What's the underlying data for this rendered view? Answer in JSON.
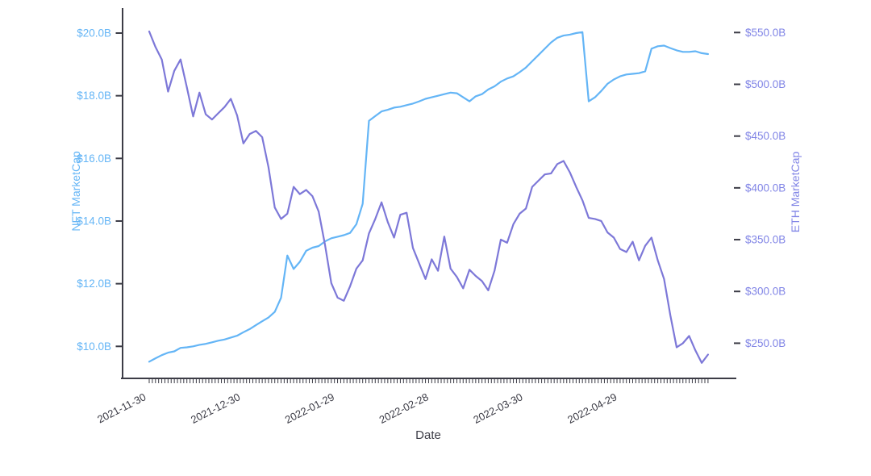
{
  "chart_data": {
    "type": "line",
    "title": "",
    "background": "#ffffff",
    "grid": false,
    "legend": "none",
    "x_axis": {
      "label": "Date",
      "color": "#3c3c46",
      "start_date": "2021-11-30",
      "tick_labels": [
        "2021-11-30",
        "2021-12-30",
        "2022-01-29",
        "2022-02-28",
        "2022-03-30",
        "2022-04-29"
      ],
      "tick_days": [
        0,
        30,
        60,
        90,
        120,
        150
      ],
      "minor_tick_step_days": 1,
      "range_days": [
        0,
        178
      ]
    },
    "left_axis": {
      "label": "NFT MarketCap",
      "color": "#64B5F6",
      "tick_labels": [
        "$20.0B",
        "$18.0B",
        "$16.0B",
        "$14.0B",
        "$12.0B",
        "$10.0B"
      ],
      "tick_values": [
        20,
        18,
        16,
        14,
        12,
        10
      ],
      "unit": "$ billions"
    },
    "right_axis": {
      "label": "ETH MarketCap",
      "color": "#8185E6",
      "tick_labels": [
        "$550.0B",
        "$500.0B",
        "$450.0B",
        "$400.0B",
        "$350.0B",
        "$300.0B",
        "$250.0B"
      ],
      "tick_values": [
        550,
        500,
        450,
        400,
        350,
        300,
        250
      ],
      "unit": "$ billions"
    },
    "sample_step_days": 2,
    "series": [
      {
        "name": "NFT MarketCap",
        "axis": "left",
        "color": "#64B5F6",
        "values": [
          9.51,
          9.62,
          9.72,
          9.8,
          9.84,
          9.95,
          9.97,
          10.0,
          10.05,
          10.08,
          10.13,
          10.18,
          10.22,
          10.28,
          10.34,
          10.45,
          10.55,
          10.68,
          10.8,
          10.92,
          11.1,
          11.55,
          12.9,
          12.47,
          12.7,
          13.05,
          13.15,
          13.2,
          13.35,
          13.45,
          13.5,
          13.55,
          13.62,
          13.9,
          14.55,
          17.2,
          17.35,
          17.5,
          17.55,
          17.62,
          17.65,
          17.7,
          17.75,
          17.82,
          17.9,
          17.95,
          18.0,
          18.05,
          18.1,
          18.08,
          17.95,
          17.82,
          17.98,
          18.05,
          18.2,
          18.3,
          18.45,
          18.55,
          18.62,
          18.75,
          18.9,
          19.1,
          19.3,
          19.5,
          19.7,
          19.85,
          19.92,
          19.95,
          20.0,
          20.03,
          17.82,
          17.95,
          18.15,
          18.38,
          18.52,
          18.62,
          18.68,
          18.7,
          18.72,
          18.78,
          19.5,
          19.58,
          19.6,
          19.52,
          19.45,
          19.4,
          19.4,
          19.42,
          19.36,
          19.33
        ]
      },
      {
        "name": "ETH MarketCap",
        "axis": "right",
        "color": "#7D78D8",
        "values": [
          551,
          536,
          524,
          493,
          513,
          524,
          497,
          469,
          492,
          471,
          466,
          472,
          478,
          486,
          470,
          443,
          452,
          455,
          449,
          420,
          381,
          370,
          375,
          401,
          394,
          398,
          392,
          377,
          345,
          308,
          294,
          291,
          305,
          322,
          330,
          356,
          370,
          386,
          367,
          352,
          374,
          376,
          342,
          327,
          312,
          331,
          320,
          353,
          322,
          314,
          303,
          321,
          315,
          310,
          301,
          320,
          350,
          347,
          365,
          375,
          380,
          401,
          407,
          413,
          414,
          423,
          426,
          415,
          401,
          388,
          371,
          370,
          368,
          357,
          352,
          341,
          338,
          348,
          330,
          344,
          352,
          330,
          312,
          277,
          246,
          250,
          257,
          243,
          231,
          239
        ]
      }
    ]
  }
}
